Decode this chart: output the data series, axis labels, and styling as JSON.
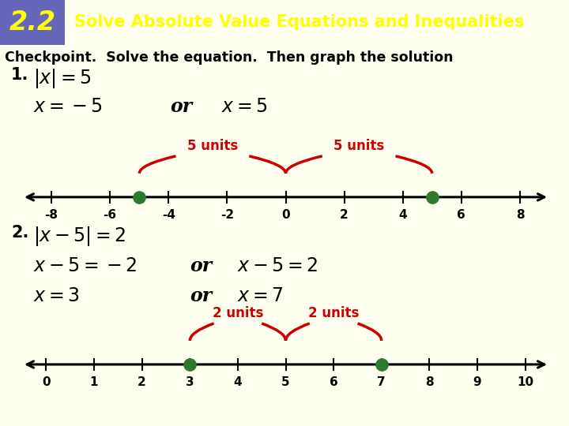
{
  "header_bg": "#3333aa",
  "header_num_bg": "#6666bb",
  "header_num": "2.2",
  "header_title": "Solve Absolute Value Equations and Inequalities",
  "header_text_color": "#ffff00",
  "body_bg": "#fffff0",
  "checkpoint_text": "Checkpoint.  Solve the equation.  Then graph the solution",
  "number_line1": {
    "tick_positions": [
      -8,
      -6,
      -4,
      -2,
      0,
      2,
      4,
      6,
      8
    ],
    "solutions": [
      -5,
      5
    ],
    "dot_color": "#2d7a2d",
    "brace_color": "#cc0000",
    "brace1_range": [
      -5,
      0
    ],
    "brace2_range": [
      0,
      5
    ],
    "brace1_label": "5 units",
    "brace2_label": "5 units",
    "data_min": -9,
    "data_max": 9
  },
  "number_line2": {
    "tick_positions": [
      0,
      1,
      2,
      3,
      4,
      5,
      6,
      7,
      8,
      9,
      10
    ],
    "solutions": [
      3,
      7
    ],
    "dot_color": "#2d7a2d",
    "brace_color": "#cc0000",
    "brace1_range": [
      3,
      5
    ],
    "brace2_range": [
      5,
      7
    ],
    "brace1_label": "2 units",
    "brace2_label": "2 units",
    "data_min": -0.5,
    "data_max": 10.5
  }
}
